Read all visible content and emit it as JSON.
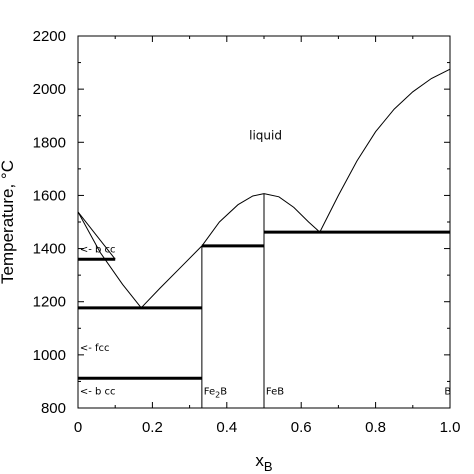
{
  "chart_data": {
    "type": "line",
    "title": "",
    "xlabel": "x",
    "xlabel_subscript": "B",
    "ylabel": "Temperature, °C",
    "xlim": [
      0,
      1
    ],
    "ylim": [
      800,
      2200
    ],
    "x_ticks": [
      "0",
      "0.2",
      "0.4",
      "0.6",
      "0.8",
      "1.0"
    ],
    "y_ticks": [
      "800",
      "1000",
      "1200",
      "1400",
      "1600",
      "1800",
      "2000",
      "2200"
    ],
    "grid": false,
    "curves": [
      {
        "points": [
          [
            0,
            1538
          ],
          [
            0.1,
            1360
          ]
        ]
      },
      {
        "points": [
          [
            0,
            1538
          ],
          [
            0.06,
            1385
          ],
          [
            0.12,
            1265
          ],
          [
            0.17,
            1177
          ]
        ]
      },
      {
        "points": [
          [
            0.17,
            1177
          ],
          [
            0.22,
            1250
          ],
          [
            0.28,
            1335
          ],
          [
            0.333,
            1410
          ]
        ]
      },
      {
        "points": [
          [
            0.333,
            1410
          ],
          [
            0.38,
            1500
          ],
          [
            0.43,
            1565
          ],
          [
            0.47,
            1598
          ],
          [
            0.5,
            1607
          ]
        ]
      },
      {
        "points": [
          [
            0.5,
            1607
          ],
          [
            0.54,
            1595
          ],
          [
            0.58,
            1555
          ],
          [
            0.62,
            1500
          ],
          [
            0.65,
            1462
          ]
        ]
      },
      {
        "points": [
          [
            0.65,
            1462
          ],
          [
            0.7,
            1600
          ],
          [
            0.75,
            1730
          ],
          [
            0.8,
            1840
          ],
          [
            0.85,
            1925
          ],
          [
            0.9,
            1990
          ],
          [
            0.95,
            2040
          ],
          [
            1.0,
            2075
          ]
        ]
      }
    ],
    "thin_segments": [
      {
        "x": [
          0.333,
          0.333
        ],
        "y": [
          800,
          1410
        ]
      },
      {
        "x": [
          0.5,
          0.5
        ],
        "y": [
          800,
          1607
        ]
      },
      {
        "x": [
          0,
          0
        ],
        "y": [
          800,
          1538
        ]
      }
    ],
    "thick_segments": [
      {
        "x": [
          0,
          0.1
        ],
        "y": [
          1360,
          1360
        ]
      },
      {
        "x": [
          0,
          0.333
        ],
        "y": [
          1177,
          1177
        ]
      },
      {
        "x": [
          0,
          0.333
        ],
        "y": [
          912,
          912
        ]
      },
      {
        "x": [
          0.333,
          0.5
        ],
        "y": [
          1410,
          1410
        ]
      },
      {
        "x": [
          0.5,
          1.0
        ],
        "y": [
          1462,
          1462
        ]
      }
    ],
    "annotations": [
      {
        "text": "liquid",
        "x": 0.46,
        "y": 1810,
        "size": "big"
      },
      {
        "text": "<- b cc",
        "x": 0.005,
        "y": 1385,
        "size": "small"
      },
      {
        "text": "<- fcc",
        "x": 0.005,
        "y": 1015,
        "size": "small"
      },
      {
        "text": "<- b cc",
        "x": 0.005,
        "y": 850,
        "size": "small"
      },
      {
        "text": "Fe",
        "sub": "2",
        "tail": "B",
        "x": 0.338,
        "y": 850,
        "size": "small"
      },
      {
        "text": "FeB",
        "x": 0.505,
        "y": 850,
        "size": "small"
      },
      {
        "text": "B",
        "x": 0.985,
        "y": 850,
        "size": "small"
      }
    ]
  }
}
